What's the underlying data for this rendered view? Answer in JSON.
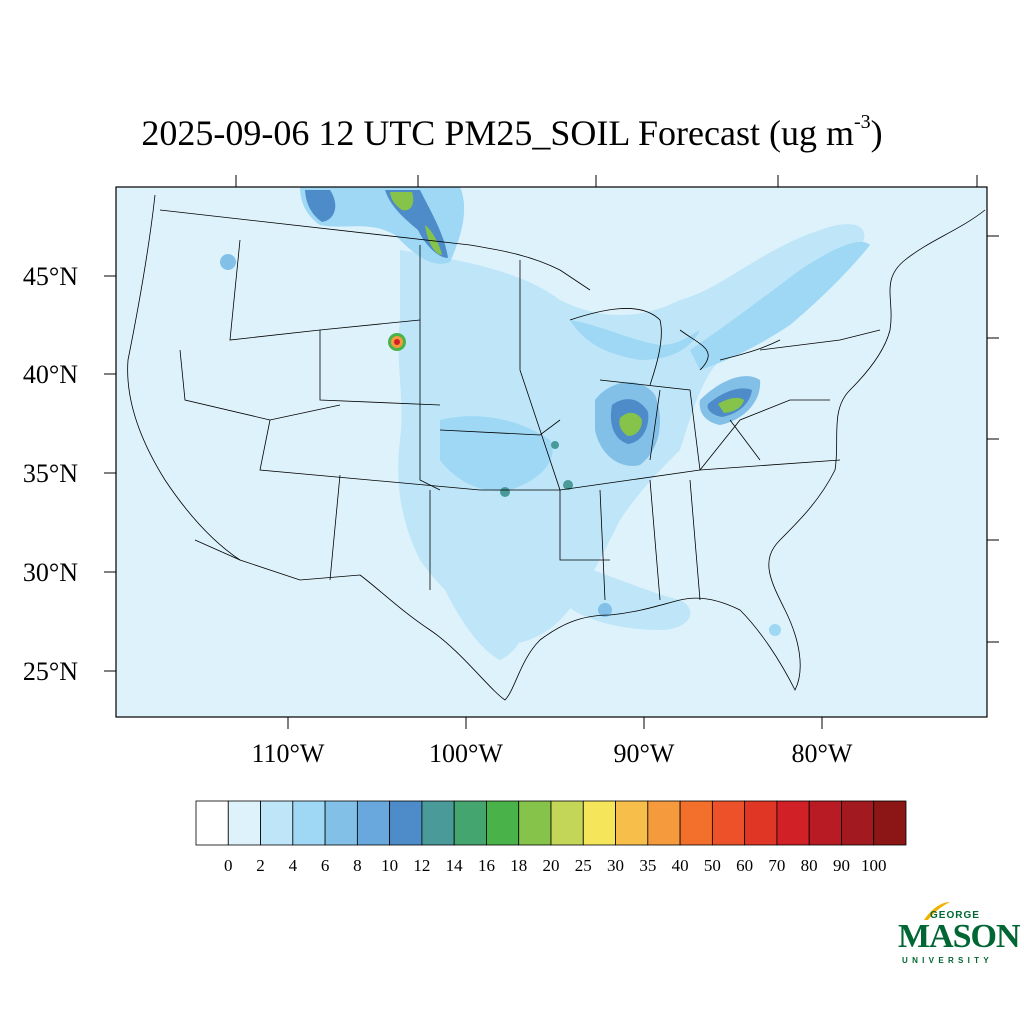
{
  "title": {
    "main": "2025-09-06 12 UTC PM25_SOIL Forecast (ug m",
    "exponent": "-3",
    "close": ")"
  },
  "map": {
    "lat_labels": [
      "45°N",
      "40°N",
      "35°N",
      "30°N",
      "25°N"
    ],
    "lon_labels": [
      "110°W",
      "100°W",
      "90°W",
      "80°W"
    ],
    "background_color": "#def2fb",
    "border_color": "#000000"
  },
  "colorbar": {
    "labels": [
      "0",
      "2",
      "4",
      "6",
      "8",
      "10",
      "12",
      "14",
      "16",
      "18",
      "20",
      "25",
      "30",
      "35",
      "40",
      "50",
      "60",
      "70",
      "80",
      "90",
      "100"
    ],
    "colors": [
      "#ffffff",
      "#def2fb",
      "#bee6f8",
      "#9fd8f5",
      "#82c0e8",
      "#68a8dc",
      "#4d8cc8",
      "#4a9a9a",
      "#45a56e",
      "#49b34a",
      "#86c34b",
      "#c3d657",
      "#f5e55a",
      "#f7bf4a",
      "#f59a3d",
      "#f36f2c",
      "#ed5129",
      "#e03626",
      "#d22027",
      "#b81b24",
      "#a21a1f",
      "#8c1616"
    ]
  },
  "logo": {
    "line1": "GEORGE",
    "line2": "MASON",
    "line3": "UNIVERSITY",
    "color": "#006633",
    "accent": "#f2b100"
  }
}
